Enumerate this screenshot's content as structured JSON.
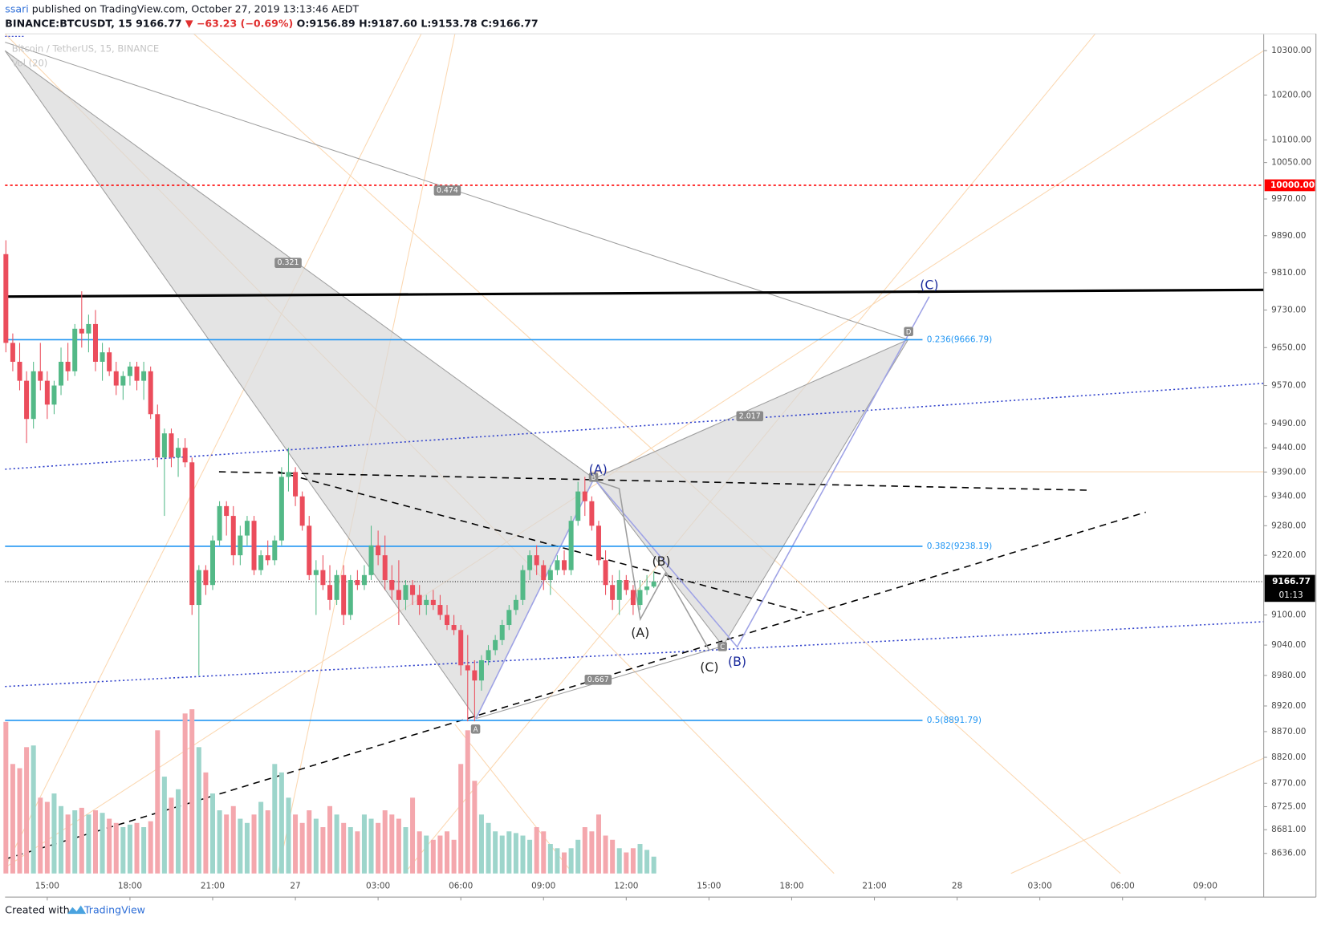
{
  "chart_data": {
    "type": "candlestick",
    "header": {
      "user": "ssari",
      "published": "published on TradingView.com, October 27, 2019 13:13:46 AEDT",
      "symbol": "BINANCE:BTCUSDT, 15",
      "last": "9166.77",
      "change": "▼ −63.23 (−0.69%)",
      "open": "O:9156.89",
      "high": "H:9187.60",
      "low": "L:9153.78",
      "close": "C:9166.77"
    },
    "watermark": "Bitcoin / TetherUS, 15, BINANCE",
    "volume_label": "Vol (20)",
    "footer": {
      "created": "Created with",
      "brand": "TradingView"
    },
    "log": true,
    "ylim": [
      8598,
      10338
    ],
    "yticks": [
      {
        "value": 10300,
        "label": "10300.00"
      },
      {
        "value": 10200,
        "label": "10200.00"
      },
      {
        "value": 10100,
        "label": "10100.00"
      },
      {
        "value": 10050,
        "label": "10050.00"
      },
      {
        "value": 9970,
        "label": "9970.00"
      },
      {
        "value": 9890,
        "label": "9890.00"
      },
      {
        "value": 9810,
        "label": "9810.00"
      },
      {
        "value": 9730,
        "label": "9730.00"
      },
      {
        "value": 9650,
        "label": "9650.00"
      },
      {
        "value": 9570,
        "label": "9570.00"
      },
      {
        "value": 9490,
        "label": "9490.00"
      },
      {
        "value": 9440,
        "label": "9440.00"
      },
      {
        "value": 9390,
        "label": "9390.00"
      },
      {
        "value": 9340,
        "label": "9340.00"
      },
      {
        "value": 9280,
        "label": "9280.00"
      },
      {
        "value": 9220,
        "label": "9220.00"
      },
      {
        "value": 9100,
        "label": "9100.00"
      },
      {
        "value": 9040,
        "label": "9040.00"
      },
      {
        "value": 8980,
        "label": "8980.00"
      },
      {
        "value": 8920,
        "label": "8920.00"
      },
      {
        "value": 8870,
        "label": "8870.00"
      },
      {
        "value": 8820,
        "label": "8820.00"
      },
      {
        "value": 8770,
        "label": "8770.00"
      },
      {
        "value": 8725,
        "label": "8725.00"
      },
      {
        "value": 8681,
        "label": "8681.00"
      },
      {
        "value": 8636,
        "label": "8636.00"
      }
    ],
    "xlim": [
      13.47,
      59.12
    ],
    "xticks": [
      {
        "value": 15,
        "label": "15:00"
      },
      {
        "value": 18,
        "label": "18:00"
      },
      {
        "value": 21,
        "label": "21:00"
      },
      {
        "value": 24,
        "label": "27"
      },
      {
        "value": 27,
        "label": "03:00"
      },
      {
        "value": 30,
        "label": "06:00"
      },
      {
        "value": 33,
        "label": "09:00"
      },
      {
        "value": 36,
        "label": "12:00"
      },
      {
        "value": 39,
        "label": "15:00"
      },
      {
        "value": 42,
        "label": "18:00"
      },
      {
        "value": 45,
        "label": "21:00"
      },
      {
        "value": 48,
        "label": "28"
      },
      {
        "value": 51,
        "label": "03:00"
      },
      {
        "value": 54,
        "label": "06:00"
      },
      {
        "value": 57,
        "label": "09:00"
      }
    ],
    "colors": {
      "up": "#53b987",
      "down": "#eb4d5c",
      "up_volume": "#9dd5cb",
      "down_volume": "#f4a7ad"
    },
    "x": [
      13.5,
      13.75,
      14,
      14.25,
      14.5,
      14.75,
      15,
      15.25,
      15.5,
      15.75,
      16,
      16.25,
      16.5,
      16.75,
      17,
      17.25,
      17.5,
      17.75,
      18,
      18.25,
      18.5,
      18.75,
      19,
      19.25,
      19.5,
      19.75,
      20,
      20.25,
      20.5,
      20.75,
      21,
      21.25,
      21.5,
      21.75,
      22,
      22.25,
      22.5,
      22.75,
      23,
      23.25,
      23.5,
      23.75,
      24,
      24.25,
      24.5,
      24.75,
      25,
      25.25,
      25.5,
      25.75,
      26,
      26.25,
      26.5,
      26.75,
      27,
      27.25,
      27.5,
      27.75,
      28,
      28.25,
      28.5,
      28.75,
      29,
      29.25,
      29.5,
      29.75,
      30,
      30.25,
      30.5,
      30.75,
      31,
      31.25,
      31.5,
      31.75,
      32,
      32.25,
      32.5,
      32.75,
      33,
      33.25,
      33.5,
      33.75,
      34,
      34.25,
      34.5,
      34.75,
      35,
      35.25,
      35.5,
      35.75,
      36,
      36.25,
      36.5,
      36.75,
      37
    ],
    "candles": [
      [
        9850,
        9880,
        9640,
        9660
      ],
      [
        9660,
        9680,
        9600,
        9620
      ],
      [
        9620,
        9660,
        9560,
        9580
      ],
      [
        9580,
        9600,
        9450,
        9500
      ],
      [
        9500,
        9620,
        9480,
        9600
      ],
      [
        9600,
        9660,
        9560,
        9580
      ],
      [
        9580,
        9600,
        9500,
        9530
      ],
      [
        9530,
        9580,
        9510,
        9570
      ],
      [
        9570,
        9650,
        9550,
        9620
      ],
      [
        9620,
        9660,
        9580,
        9600
      ],
      [
        9600,
        9700,
        9590,
        9690
      ],
      [
        9690,
        9770,
        9650,
        9680
      ],
      [
        9680,
        9720,
        9640,
        9700
      ],
      [
        9700,
        9730,
        9600,
        9620
      ],
      [
        9620,
        9660,
        9580,
        9640
      ],
      [
        9640,
        9650,
        9590,
        9600
      ],
      [
        9600,
        9620,
        9550,
        9570
      ],
      [
        9570,
        9600,
        9540,
        9590
      ],
      [
        9590,
        9620,
        9570,
        9610
      ],
      [
        9610,
        9620,
        9560,
        9580
      ],
      [
        9580,
        9620,
        9540,
        9600
      ],
      [
        9600,
        9610,
        9500,
        9510
      ],
      [
        9510,
        9530,
        9400,
        9420
      ],
      [
        9420,
        9480,
        9300,
        9470
      ],
      [
        9470,
        9480,
        9400,
        9420
      ],
      [
        9420,
        9460,
        9380,
        9440
      ],
      [
        9440,
        9460,
        9400,
        9410
      ],
      [
        9410,
        9420,
        9100,
        9120
      ],
      [
        9120,
        9200,
        8980,
        9190
      ],
      [
        9190,
        9200,
        9140,
        9160
      ],
      [
        9160,
        9260,
        9150,
        9250
      ],
      [
        9250,
        9330,
        9240,
        9320
      ],
      [
        9320,
        9330,
        9260,
        9300
      ],
      [
        9300,
        9320,
        9200,
        9220
      ],
      [
        9220,
        9280,
        9200,
        9260
      ],
      [
        9260,
        9300,
        9240,
        9290
      ],
      [
        9290,
        9300,
        9180,
        9190
      ],
      [
        9190,
        9230,
        9180,
        9220
      ],
      [
        9220,
        9250,
        9200,
        9210
      ],
      [
        9210,
        9260,
        9200,
        9250
      ],
      [
        9250,
        9400,
        9240,
        9380
      ],
      [
        9380,
        9440,
        9350,
        9390
      ],
      [
        9390,
        9400,
        9320,
        9340
      ],
      [
        9340,
        9350,
        9270,
        9280
      ],
      [
        9280,
        9300,
        9170,
        9180
      ],
      [
        9180,
        9210,
        9100,
        9190
      ],
      [
        9190,
        9220,
        9150,
        9160
      ],
      [
        9160,
        9200,
        9110,
        9130
      ],
      [
        9130,
        9190,
        9120,
        9180
      ],
      [
        9180,
        9200,
        9080,
        9100
      ],
      [
        9100,
        9180,
        9090,
        9170
      ],
      [
        9170,
        9190,
        9150,
        9160
      ],
      [
        9160,
        9200,
        9150,
        9180
      ],
      [
        9180,
        9280,
        9170,
        9240
      ],
      [
        9240,
        9270,
        9200,
        9220
      ],
      [
        9220,
        9260,
        9150,
        9170
      ],
      [
        9170,
        9200,
        9130,
        9150
      ],
      [
        9150,
        9210,
        9080,
        9130
      ],
      [
        9130,
        9170,
        9110,
        9160
      ],
      [
        9160,
        9170,
        9120,
        9140
      ],
      [
        9140,
        9160,
        9100,
        9120
      ],
      [
        9120,
        9140,
        9100,
        9130
      ],
      [
        9130,
        9150,
        9110,
        9120
      ],
      [
        9120,
        9140,
        9090,
        9100
      ],
      [
        9100,
        9120,
        9070,
        9080
      ],
      [
        9080,
        9100,
        9060,
        9070
      ],
      [
        9070,
        9080,
        8980,
        9000
      ],
      [
        9000,
        9060,
        8890,
        8990
      ],
      [
        8990,
        9010,
        8890,
        8970
      ],
      [
        8970,
        9020,
        8950,
        9010
      ],
      [
        9010,
        9040,
        9000,
        9030
      ],
      [
        9030,
        9060,
        9020,
        9050
      ],
      [
        9050,
        9090,
        9040,
        9080
      ],
      [
        9080,
        9120,
        9070,
        9110
      ],
      [
        9110,
        9140,
        9100,
        9130
      ],
      [
        9130,
        9200,
        9120,
        9190
      ],
      [
        9190,
        9230,
        9170,
        9220
      ],
      [
        9220,
        9240,
        9180,
        9200
      ],
      [
        9200,
        9210,
        9150,
        9170
      ],
      [
        9170,
        9200,
        9140,
        9190
      ],
      [
        9190,
        9220,
        9180,
        9210
      ],
      [
        9210,
        9230,
        9180,
        9190
      ],
      [
        9190,
        9300,
        9180,
        9290
      ],
      [
        9290,
        9370,
        9280,
        9350
      ],
      [
        9350,
        9380,
        9300,
        9330
      ],
      [
        9330,
        9340,
        9270,
        9280
      ],
      [
        9280,
        9290,
        9200,
        9210
      ],
      [
        9210,
        9230,
        9140,
        9160
      ],
      [
        9160,
        9180,
        9110,
        9130
      ],
      [
        9130,
        9190,
        9100,
        9170
      ],
      [
        9170,
        9180,
        9140,
        9150
      ],
      [
        9150,
        9160,
        9100,
        9120
      ],
      [
        9120,
        9170,
        9110,
        9150
      ],
      [
        9150,
        9180,
        9140,
        9157
      ],
      [
        9156.89,
        9187.6,
        9153.78,
        9166.77
      ]
    ],
    "volume": [
      180,
      130,
      125,
      150,
      152,
      90,
      85,
      95,
      80,
      70,
      75,
      78,
      70,
      75,
      72,
      65,
      60,
      55,
      58,
      60,
      55,
      62,
      170,
      115,
      90,
      100,
      190,
      195,
      150,
      120,
      95,
      75,
      70,
      80,
      65,
      60,
      70,
      85,
      75,
      130,
      120,
      90,
      70,
      60,
      75,
      65,
      55,
      80,
      70,
      60,
      55,
      50,
      70,
      65,
      60,
      75,
      70,
      65,
      55,
      90,
      50,
      45,
      40,
      45,
      50,
      40,
      130,
      170,
      110,
      70,
      60,
      50,
      45,
      50,
      48,
      45,
      40,
      55,
      50,
      35,
      30,
      25,
      30,
      40,
      55,
      50,
      70,
      45,
      40,
      30,
      25,
      30,
      35,
      28,
      20
    ],
    "alert_line": {
      "value": 10000,
      "label": "10000.00"
    },
    "last_price": 9166.77,
    "countdown": "01:13",
    "fib_levels": [
      {
        "value": 9666.79,
        "label": "0.236(9666.79)"
      },
      {
        "value": 9238.19,
        "label": "0.382(9238.19)"
      },
      {
        "value": 8891.79,
        "label": "0.5(8891.79)"
      }
    ],
    "pattern_points": [
      "A",
      "B",
      "C",
      "D"
    ],
    "pattern_ratios": [
      "0.474",
      "0.321",
      "2.017",
      "0.667"
    ],
    "waves_blue": [
      "(A)",
      "(B)",
      "(C)"
    ],
    "waves_black": [
      "(A)",
      "(B)",
      "(C)"
    ]
  }
}
